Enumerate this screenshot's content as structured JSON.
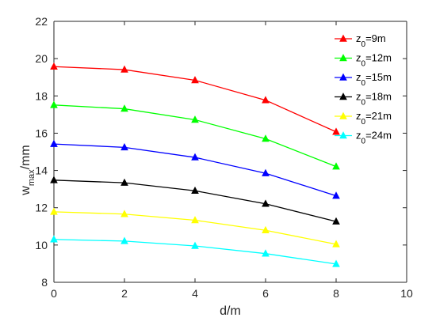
{
  "chart_data": {
    "type": "line",
    "xlabel": "d/m",
    "ylabel_main": "w",
    "ylabel_sub": "max",
    "ylabel_unit": "/mm",
    "xlim": [
      0,
      10
    ],
    "ylim": [
      8,
      22
    ],
    "xticks": [
      "0",
      "2",
      "4",
      "6",
      "8",
      "10"
    ],
    "yticks": [
      "8",
      "10",
      "12",
      "14",
      "16",
      "18",
      "20",
      "22"
    ],
    "grid": false,
    "legend_position": "top-right",
    "x": [
      0,
      2,
      4,
      6,
      8
    ],
    "series": [
      {
        "name_main": "z",
        "name_sub": "0",
        "name_rest": "=9m",
        "color": "#ff0000",
        "values": [
          19.57,
          19.41,
          18.84,
          17.77,
          16.07
        ]
      },
      {
        "name_main": "z",
        "name_sub": "0",
        "name_rest": "=12m",
        "color": "#00ff00",
        "values": [
          17.51,
          17.31,
          16.72,
          15.7,
          14.21
        ]
      },
      {
        "name_main": "z",
        "name_sub": "0",
        "name_rest": "=15m",
        "color": "#0000ff",
        "values": [
          15.42,
          15.24,
          14.7,
          13.85,
          12.64
        ]
      },
      {
        "name_main": "z",
        "name_sub": "0",
        "name_rest": "=18m",
        "color": "#000000",
        "values": [
          13.48,
          13.34,
          12.91,
          12.21,
          11.26
        ]
      },
      {
        "name_main": "z",
        "name_sub": "0",
        "name_rest": "=21m",
        "color": "#ffff00",
        "values": [
          11.78,
          11.66,
          11.33,
          10.79,
          10.04
        ]
      },
      {
        "name_main": "z",
        "name_sub": "0",
        "name_rest": "=24m",
        "color": "#00ffff",
        "values": [
          10.3,
          10.21,
          9.95,
          9.54,
          8.98
        ]
      }
    ]
  }
}
